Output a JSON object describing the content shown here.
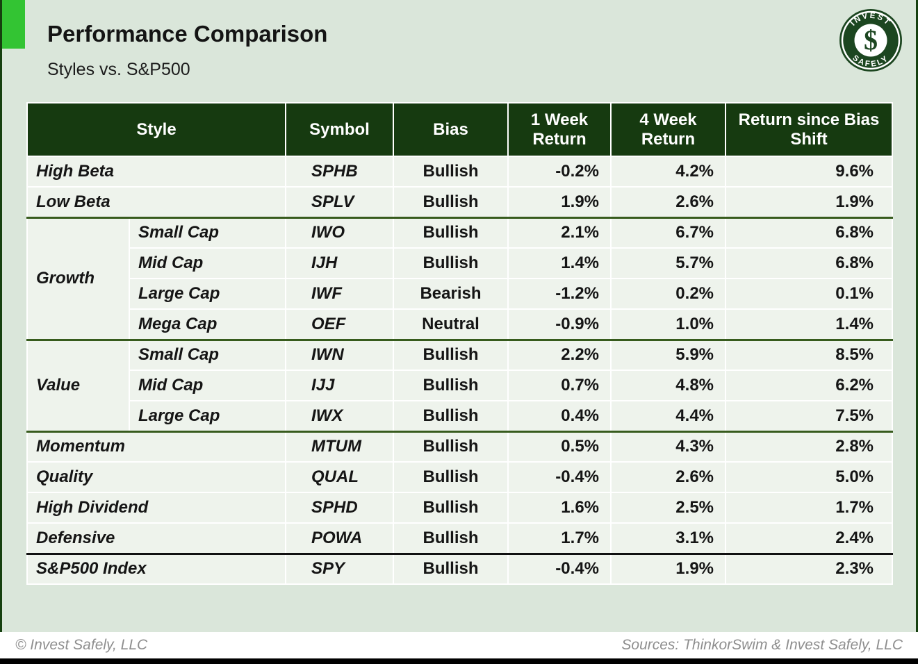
{
  "header": {
    "title": "Performance Comparison",
    "subtitle": "Styles vs. S&P500"
  },
  "logo": {
    "top_text": "INVEST",
    "bottom_text": "SAFELY",
    "monogram": "$"
  },
  "table": {
    "headers": {
      "style": "Style",
      "symbol": "Symbol",
      "bias": "Bias",
      "week1": "1 Week Return",
      "week4": "4 Week Return",
      "since": "Return since Bias Shift"
    },
    "rows": [
      {
        "style": "High Beta",
        "symbol": "SPHB",
        "bias": "Bullish",
        "bias_tone": "pos",
        "w1": "-0.2%",
        "w1_tone": "neg",
        "w4": "4.2%",
        "w4_tone": "pos",
        "rs": "9.6%",
        "rs_tone": "pos",
        "sep": "thin"
      },
      {
        "style": "Low Beta",
        "symbol": "SPLV",
        "bias": "Bullish",
        "bias_tone": "pos",
        "w1": "1.9%",
        "w1_tone": "pos",
        "w4": "2.6%",
        "w4_tone": "pos",
        "rs": "1.9%",
        "rs_tone": "pos",
        "sep": "thin"
      },
      {
        "group": "Growth",
        "group_rows": 4,
        "sub": "Small Cap",
        "symbol": "IWO",
        "bias": "Bullish",
        "bias_tone": "pos",
        "w1": "2.1%",
        "w1_tone": "pos",
        "w4": "6.7%",
        "w4_tone": "pos",
        "rs": "6.8%",
        "rs_tone": "pos",
        "sep": "group"
      },
      {
        "sub": "Mid Cap",
        "symbol": "IJH",
        "bias": "Bullish",
        "bias_tone": "pos",
        "w1": "1.4%",
        "w1_tone": "pos",
        "w4": "5.7%",
        "w4_tone": "pos",
        "rs": "6.8%",
        "rs_tone": "pos",
        "sep": "thin"
      },
      {
        "sub": "Large Cap",
        "symbol": "IWF",
        "bias": "Bearish",
        "bias_tone": "neg",
        "w1": "-1.2%",
        "w1_tone": "neg",
        "w4": "0.2%",
        "w4_tone": "pos",
        "rs": "0.1%",
        "rs_tone": "pos",
        "sep": "thin"
      },
      {
        "sub": "Mega Cap",
        "symbol": "OEF",
        "bias": "Neutral",
        "bias_tone": "neu",
        "w1": "-0.9%",
        "w1_tone": "neg",
        "w4": "1.0%",
        "w4_tone": "pos",
        "rs": "1.4%",
        "rs_tone": "pos",
        "sep": "thin"
      },
      {
        "group": "Value",
        "group_rows": 3,
        "sub": "Small Cap",
        "symbol": "IWN",
        "bias": "Bullish",
        "bias_tone": "pos",
        "w1": "2.2%",
        "w1_tone": "pos",
        "w4": "5.9%",
        "w4_tone": "pos",
        "rs": "8.5%",
        "rs_tone": "pos",
        "sep": "group"
      },
      {
        "sub": "Mid Cap",
        "symbol": "IJJ",
        "bias": "Bullish",
        "bias_tone": "pos",
        "w1": "0.7%",
        "w1_tone": "pos",
        "w4": "4.8%",
        "w4_tone": "pos",
        "rs": "6.2%",
        "rs_tone": "pos",
        "sep": "thin"
      },
      {
        "sub": "Large Cap",
        "symbol": "IWX",
        "bias": "Bullish",
        "bias_tone": "pos",
        "w1": "0.4%",
        "w1_tone": "pos",
        "w4": "4.4%",
        "w4_tone": "pos",
        "rs": "7.5%",
        "rs_tone": "pos",
        "sep": "thin"
      },
      {
        "style": "Momentum",
        "symbol": "MTUM",
        "bias": "Bullish",
        "bias_tone": "pos",
        "w1": "0.5%",
        "w1_tone": "pos",
        "w4": "4.3%",
        "w4_tone": "pos",
        "rs": "2.8%",
        "rs_tone": "pos",
        "sep": "group"
      },
      {
        "style": "Quality",
        "symbol": "QUAL",
        "bias": "Bullish",
        "bias_tone": "pos",
        "w1": "-0.4%",
        "w1_tone": "neg",
        "w4": "2.6%",
        "w4_tone": "pos",
        "rs": "5.0%",
        "rs_tone": "pos",
        "sep": "thin"
      },
      {
        "style": "High Dividend",
        "symbol": "SPHD",
        "bias": "Bullish",
        "bias_tone": "pos",
        "w1": "1.6%",
        "w1_tone": "pos",
        "w4": "2.5%",
        "w4_tone": "pos",
        "rs": "1.7%",
        "rs_tone": "pos",
        "sep": "thin"
      },
      {
        "style": "Defensive",
        "symbol": "POWA",
        "bias": "Bullish",
        "bias_tone": "pos",
        "w1": "1.7%",
        "w1_tone": "pos",
        "w4": "3.1%",
        "w4_tone": "pos",
        "rs": "2.4%",
        "rs_tone": "pos",
        "sep": "thin"
      },
      {
        "style": "S&P500 Index",
        "symbol": "SPY",
        "bias": "Bullish",
        "bias_tone": "pos",
        "w1": "-0.4%",
        "w1_tone": "neg",
        "w4": "1.9%",
        "w4_tone": "pos",
        "rs": "2.3%",
        "rs_tone": "pos",
        "sep": "index"
      }
    ]
  },
  "footer": {
    "left": "© Invest Safely, LLC",
    "right": "Sources: ThinkorSwim & Invest Safely, LLC"
  },
  "colors": {
    "accent": "#33c433",
    "page-bg": "#dae6da",
    "header-bg": "#163a10",
    "row-bg": "#eef3ec",
    "positive": "#0e7c10",
    "negative": "#e91111",
    "neutral": "#9a9a9a",
    "group-border": "#375b1d",
    "index-border": "#111111",
    "footer-text": "#8e8e8e",
    "logo-green": "#1c4620",
    "slide-edge": "#16400f"
  }
}
